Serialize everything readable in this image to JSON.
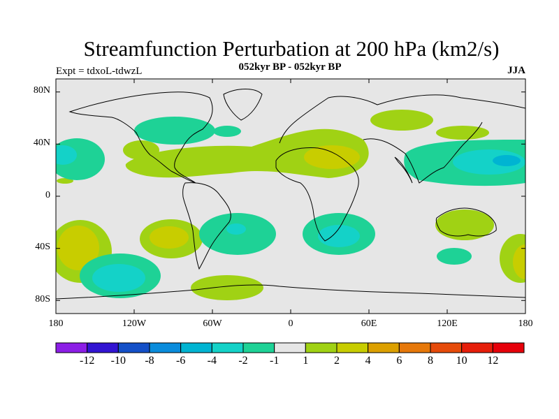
{
  "map": {
    "title": "Streamfunction Perturbation at 200 hPa (km2/s)",
    "subtitle": "052kyr BP - 052kyr BP",
    "left_label": "Expt = tdxoL-tdwzL",
    "season": "JJA",
    "lat_ticks": [
      "80N",
      "40N",
      "0",
      "40S",
      "80S"
    ],
    "lon_ticks": [
      "180",
      "120W",
      "60W",
      "0",
      "60E",
      "120E",
      "180"
    ],
    "background_color": "#e6e6e6"
  },
  "colorbar": {
    "labels": [
      "-12",
      "-10",
      "-8",
      "-6",
      "-4",
      "-2",
      "-1",
      "1",
      "2",
      "4",
      "6",
      "8",
      "10",
      "12"
    ],
    "colors": [
      "#8c1ee6",
      "#3214d2",
      "#1450c8",
      "#0a8cdc",
      "#00b4d2",
      "#14d2c8",
      "#1ed296",
      "#e6e6e6",
      "#a0d214",
      "#c8cd00",
      "#dca000",
      "#e6780a",
      "#e64b0a",
      "#e61e0a",
      "#e6000a"
    ]
  }
}
